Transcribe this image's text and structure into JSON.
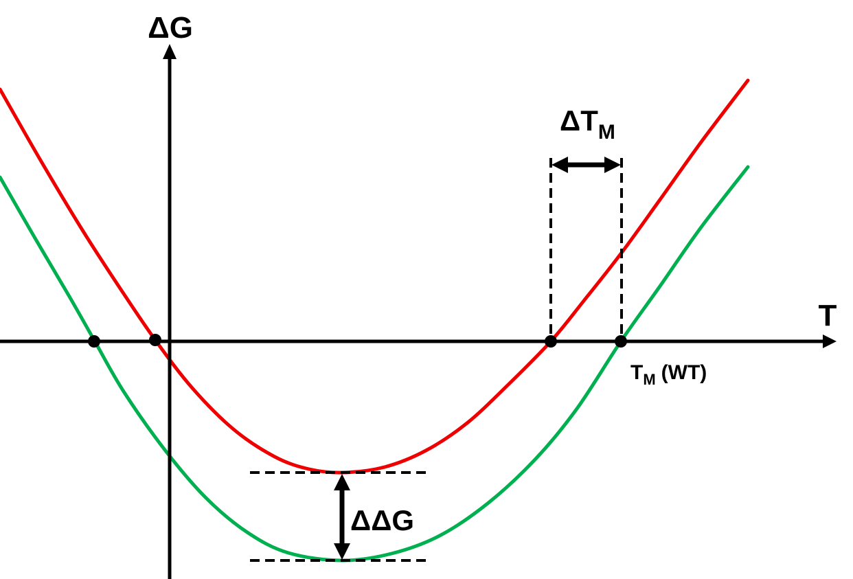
{
  "labels": {
    "y_axis": "ΔG",
    "x_axis": "T",
    "delta_tm_main": "ΔT",
    "delta_tm_sub": "M",
    "tm_wt_main": "T",
    "tm_wt_sub": "M",
    "tm_wt_suffix": "(WT)",
    "delta_delta_g": "ΔΔG"
  },
  "colors": {
    "upper_curve": "#ee0000",
    "lower_curve": "#00b050",
    "axes": "#000000"
  }
}
